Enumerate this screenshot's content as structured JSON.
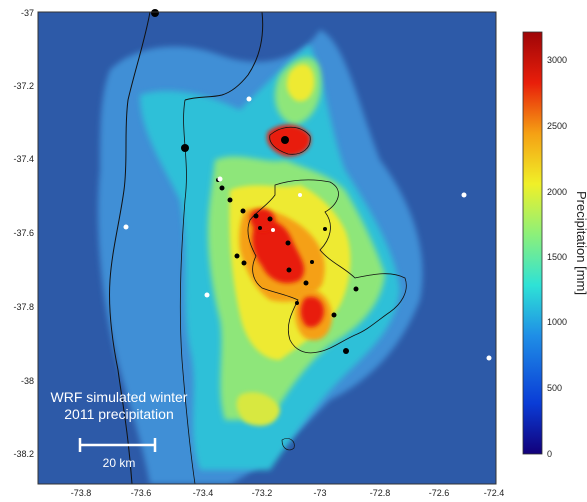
{
  "map": {
    "annotation_line1": "WRF simulated winter",
    "annotation_line2": "2011 precipitation",
    "scale_bar_label": "20 km",
    "x_ticks": [
      "-73.8",
      "-73.6",
      "-73.4",
      "-73.2",
      "-73",
      "-72.8",
      "-72.6",
      "-72.4"
    ],
    "y_ticks": [
      "-37",
      "-37.2",
      "-37.4",
      "-37.6",
      "-37.8",
      "-38",
      "-38.2"
    ],
    "background_color": "#2d5aa8"
  },
  "colorbar": {
    "title": "Precipitation [mm]",
    "ticks": [
      "3000",
      "2500",
      "2000",
      "1500",
      "1000",
      "500",
      "0"
    ],
    "min": 0,
    "max": 3200,
    "colors": [
      "#12007a",
      "#0a3cd6",
      "#1f8ee6",
      "#2ee2d6",
      "#8cf07a",
      "#f0f028",
      "#f5a014",
      "#e81e0a",
      "#9e0508"
    ]
  },
  "stations": {
    "black_count": 21,
    "white_count": 8
  }
}
